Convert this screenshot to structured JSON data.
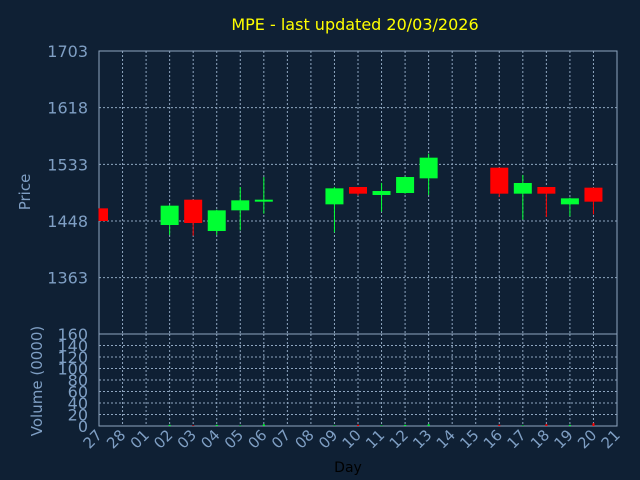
{
  "chart_data": [
    {
      "type": "candlestick",
      "title": "MPE - last updated 20/03/2026",
      "ylabel": "Price",
      "ylim": [
        1363,
        1703
      ],
      "yticks": [
        "1703",
        "1618",
        "1533",
        "1448",
        "1363"
      ],
      "x_labels": [
        "27",
        "28",
        "01",
        "02",
        "03",
        "04",
        "05",
        "06",
        "07",
        "08",
        "09",
        "10",
        "11",
        "12",
        "13",
        "14",
        "15",
        "16",
        "17",
        "18",
        "19",
        "20",
        "21"
      ],
      "candles": [
        {
          "day": "27",
          "open": 1467,
          "high": 1467,
          "low": 1448,
          "close": 1448
        },
        {
          "day": "02",
          "open": 1442,
          "high": 1472,
          "low": 1427,
          "close": 1471
        },
        {
          "day": "03",
          "open": 1480,
          "high": 1480,
          "low": 1426,
          "close": 1445
        },
        {
          "day": "04",
          "open": 1433,
          "high": 1465,
          "low": 1427,
          "close": 1464
        },
        {
          "day": "05",
          "open": 1464,
          "high": 1499,
          "low": 1434,
          "close": 1479
        },
        {
          "day": "06",
          "open": 1477,
          "high": 1514,
          "low": 1459,
          "close": 1480
        },
        {
          "day": "09",
          "open": 1473,
          "high": 1499,
          "low": 1431,
          "close": 1497
        },
        {
          "day": "10",
          "open": 1499,
          "high": 1499,
          "low": 1486,
          "close": 1489
        },
        {
          "day": "11",
          "open": 1487,
          "high": 1505,
          "low": 1462,
          "close": 1493
        },
        {
          "day": "12",
          "open": 1490,
          "high": 1515,
          "low": 1489,
          "close": 1514
        },
        {
          "day": "13",
          "open": 1512,
          "high": 1549,
          "low": 1487,
          "close": 1543
        },
        {
          "day": "16",
          "open": 1528,
          "high": 1528,
          "low": 1484,
          "close": 1489
        },
        {
          "day": "17",
          "open": 1489,
          "high": 1517,
          "low": 1450,
          "close": 1505
        },
        {
          "day": "18",
          "open": 1499,
          "high": 1499,
          "low": 1454,
          "close": 1489
        },
        {
          "day": "19",
          "open": 1473,
          "high": 1483,
          "low": 1455,
          "close": 1482
        },
        {
          "day": "20",
          "open": 1498,
          "high": 1498,
          "low": 1458,
          "close": 1477
        }
      ],
      "up_color": "#00ff33",
      "down_color": "#ff0000",
      "grid": true
    },
    {
      "type": "bar",
      "ylabel": "Volume (0000)",
      "xlabel": "Day",
      "ylim": [
        0,
        160
      ],
      "yticks": [
        "160",
        "140",
        "120",
        "100",
        "80",
        "60",
        "40",
        "20",
        "0"
      ],
      "values": [
        {
          "day": "02",
          "value": 2
        },
        {
          "day": "03",
          "value": 1
        },
        {
          "day": "04",
          "value": 2
        },
        {
          "day": "05",
          "value": 1
        },
        {
          "day": "06",
          "value": 3
        },
        {
          "day": "09",
          "value": 1
        },
        {
          "day": "10",
          "value": 2
        },
        {
          "day": "11",
          "value": 1
        },
        {
          "day": "12",
          "value": 2
        },
        {
          "day": "13",
          "value": 3
        },
        {
          "day": "16",
          "value": 2
        },
        {
          "day": "17",
          "value": 1
        },
        {
          "day": "18",
          "value": 3
        },
        {
          "day": "19",
          "value": 2
        },
        {
          "day": "20",
          "value": 5
        }
      ],
      "grid": true
    }
  ],
  "colors": {
    "background": "#0f2034",
    "title": "#ffff00",
    "axis_text": "#7f9fc4",
    "grid": "#8fa6c0"
  }
}
